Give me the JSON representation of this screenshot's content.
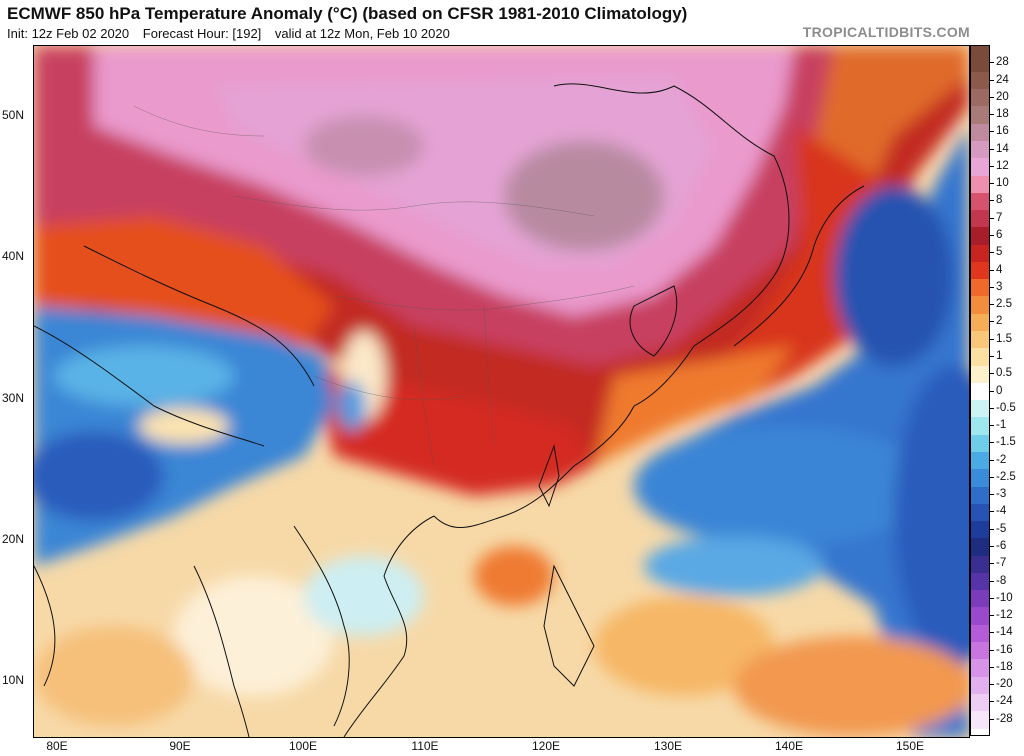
{
  "header": {
    "title": "ECMWF 850 hPa Temperature Anomaly (°C) (based on CFSR 1981-2010 Climatology)",
    "init": "Init: 12z Feb 02 2020",
    "forecast_hour": "Forecast Hour: [192]",
    "valid": "valid at 12z Mon, Feb 10 2020",
    "watermark": "TROPICALTIDBITS.COM"
  },
  "map": {
    "lat_labels": [
      "50N",
      "40N",
      "30N",
      "20N",
      "10N"
    ],
    "lon_labels": [
      "80E",
      "90E",
      "100E",
      "110E",
      "120E",
      "130E",
      "140E",
      "150E"
    ]
  },
  "colorbar": {
    "levels": [
      {
        "label": "28",
        "color": "#7a4a3a"
      },
      {
        "label": "24",
        "color": "#8c5a4a"
      },
      {
        "label": "20",
        "color": "#9c6a60"
      },
      {
        "label": "18",
        "color": "#a87a78"
      },
      {
        "label": "16",
        "color": "#c08a9e"
      },
      {
        "label": "14",
        "color": "#d49ac0"
      },
      {
        "label": "12",
        "color": "#e8a6d6"
      },
      {
        "label": "10",
        "color": "#ef8fb0"
      },
      {
        "label": "8",
        "color": "#d7536d"
      },
      {
        "label": "7",
        "color": "#c2374e"
      },
      {
        "label": "6",
        "color": "#a81d2a"
      },
      {
        "label": "5",
        "color": "#c82420"
      },
      {
        "label": "4",
        "color": "#e0361d"
      },
      {
        "label": "3",
        "color": "#ef6a2a"
      },
      {
        "label": "2.5",
        "color": "#f38d3e"
      },
      {
        "label": "2",
        "color": "#f6ad57"
      },
      {
        "label": "1.5",
        "color": "#f8c77a"
      },
      {
        "label": "1",
        "color": "#fbe0a4"
      },
      {
        "label": "0.5",
        "color": "#fdf0cd"
      },
      {
        "label": "0",
        "color": "#ffffff"
      },
      {
        "label": "-0.5",
        "color": "#cdf4f2"
      },
      {
        "label": "-1",
        "color": "#9ee7ee"
      },
      {
        "label": "-1.5",
        "color": "#6fcdea"
      },
      {
        "label": "-2",
        "color": "#4aabe4"
      },
      {
        "label": "-2.5",
        "color": "#3a8bd9"
      },
      {
        "label": "-3",
        "color": "#2f6dc9"
      },
      {
        "label": "-4",
        "color": "#2753b4"
      },
      {
        "label": "-5",
        "color": "#1e3c9b"
      },
      {
        "label": "-6",
        "color": "#1e2d80"
      },
      {
        "label": "-7",
        "color": "#3b2e91"
      },
      {
        "label": "-8",
        "color": "#5633a6"
      },
      {
        "label": "-10",
        "color": "#7b3cbc"
      },
      {
        "label": "-12",
        "color": "#9a49cc"
      },
      {
        "label": "-14",
        "color": "#b45cd8"
      },
      {
        "label": "-16",
        "color": "#c875e0"
      },
      {
        "label": "-18",
        "color": "#d693e7"
      },
      {
        "label": "-20",
        "color": "#e2b0ee"
      },
      {
        "label": "-24",
        "color": "#edcdf4"
      },
      {
        "label": "-28",
        "color": "#f6e6f9"
      }
    ]
  }
}
